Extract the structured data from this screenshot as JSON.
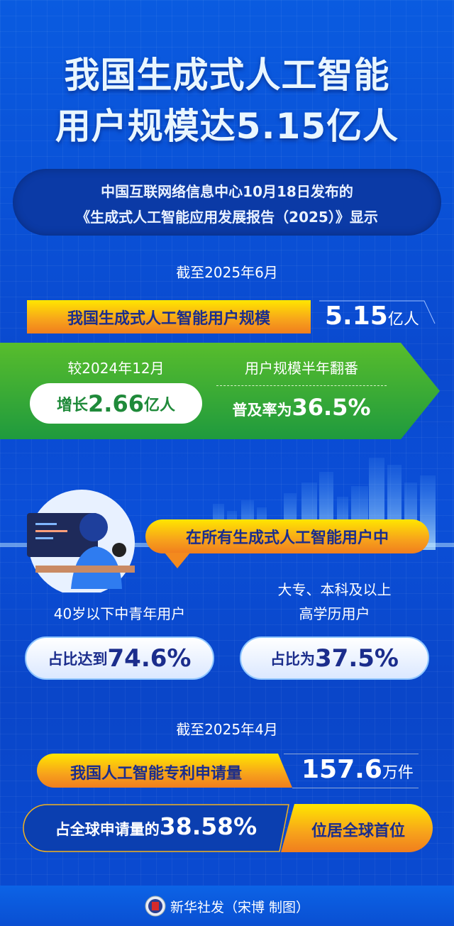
{
  "title": {
    "line1": "我国生成式人工智能",
    "line2": "用户规模达5.15亿人"
  },
  "subtitle": {
    "line1": "中国互联网络信息中心10月18日发布的",
    "line2": "《生成式人工智能应用发展报告（2025）》显示"
  },
  "section1": {
    "date": "截至2025年6月",
    "label": "我国生成式人工智能用户规模",
    "value": "5.15",
    "unit": "亿人",
    "compare_label": "较2024年12月",
    "growth_prefix": "增长",
    "growth_value": "2.66",
    "growth_unit": "亿人",
    "double_label": "用户规模半年翻番",
    "rate_prefix": "普及率为",
    "rate_value": "36.5%"
  },
  "section2": {
    "callout": "在所有生成式人工智能用户中",
    "left_label": "40岁以下中青年用户",
    "left_prefix": "占比达到",
    "left_value": "74.6%",
    "right_label1": "大专、本科及以上",
    "right_label2": "高学历用户",
    "right_prefix": "占比为",
    "right_value": "37.5%"
  },
  "section3": {
    "date": "截至2025年4月",
    "label": "我国人工智能专利申请量",
    "value": "157.6",
    "unit": "万件",
    "share_prefix": "占全球申请量的",
    "share_value": "38.58%",
    "rank": "位居全球首位"
  },
  "footer": {
    "credit": "新华社发（宋博 制图）",
    "logo": "xinhua-logo"
  },
  "colors": {
    "background": "#0a4fd6",
    "orange": "#f7a21b",
    "green": "#3aaa35",
    "text_dark": "#1b2d8c"
  }
}
